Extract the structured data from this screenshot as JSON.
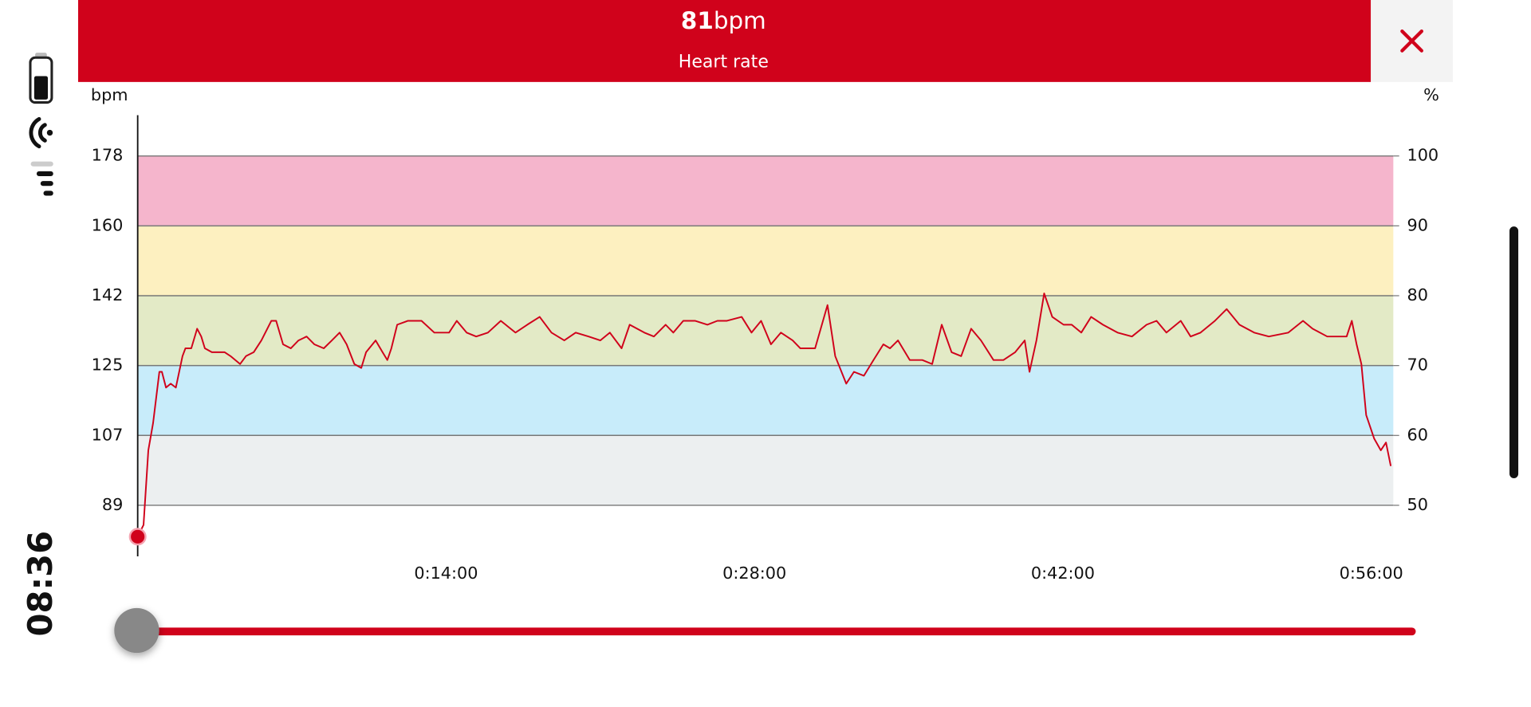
{
  "header": {
    "value": "81",
    "unit": "bpm",
    "label": "Heart rate"
  },
  "status": {
    "time": "08:36"
  },
  "chart_data": {
    "type": "line",
    "y_label": "bpm",
    "y2_label": "%",
    "xlim": [
      0,
      3420
    ],
    "xticks": [
      {
        "value": 840,
        "label": "0:14:00"
      },
      {
        "value": 1680,
        "label": "0:28:00"
      },
      {
        "value": 2520,
        "label": "0:42:00"
      },
      {
        "value": 3360,
        "label": "0:56:00"
      }
    ],
    "ylim": [
      76,
      188.4
    ],
    "yticks": [
      89,
      {
        "value": 106.8,
        "label": "107"
      },
      {
        "value": 124.6,
        "label": "125"
      },
      {
        "value": 142.4,
        "label": "142"
      },
      {
        "value": 160.2,
        "label": "160"
      },
      178
    ],
    "y2lim": [
      42.7,
      105.84
    ],
    "y2ticks": [
      50,
      60,
      70,
      80,
      90,
      100
    ],
    "grid": true,
    "zones": [
      {
        "from": 50,
        "to": 60,
        "color": "#eceff0"
      },
      {
        "from": 60,
        "to": 70,
        "color": "#c8ecfa"
      },
      {
        "from": 70,
        "to": 80,
        "color": "#e3eac6"
      },
      {
        "from": 80,
        "to": 90,
        "color": "#fdf0c0"
      },
      {
        "from": 90,
        "to": 100,
        "color": "#f5b5cc"
      }
    ],
    "x": [
      0,
      16,
      29,
      42,
      59,
      66,
      77,
      90,
      104,
      122,
      130,
      146,
      162,
      173,
      183,
      202,
      237,
      253,
      279,
      295,
      316,
      337,
      364,
      377,
      396,
      417,
      438,
      460,
      481,
      507,
      529,
      550,
      569,
      590,
      609,
      622,
      648,
      667,
      680,
      691,
      707,
      736,
      773,
      808,
      848,
      869,
      896,
      922,
      954,
      989,
      1029,
      1061,
      1095,
      1127,
      1162,
      1193,
      1228,
      1260,
      1286,
      1318,
      1340,
      1380,
      1406,
      1438,
      1459,
      1486,
      1518,
      1552,
      1579,
      1605,
      1645,
      1672,
      1698,
      1725,
      1752,
      1784,
      1805,
      1845,
      1879,
      1900,
      1930,
      1951,
      1978,
      2004,
      2031,
      2049,
      2071,
      2103,
      2137,
      2164,
      2190,
      2217,
      2243,
      2270,
      2297,
      2331,
      2358,
      2390,
      2416,
      2429,
      2448,
      2469,
      2491,
      2522,
      2544,
      2570,
      2597,
      2629,
      2669,
      2708,
      2748,
      2775,
      2802,
      2841,
      2868,
      2895,
      2934,
      2966,
      3001,
      3041,
      3081,
      3134,
      3174,
      3200,
      3240,
      3293,
      3307,
      3320,
      3333,
      3346,
      3368,
      3386,
      3400,
      3413
    ],
    "series": [
      {
        "name": "Heart rate",
        "color": "#d0021b",
        "values": [
          81,
          84,
          103,
          110,
          123,
          123,
          119,
          120,
          119,
          127,
          129,
          129,
          134,
          132,
          129,
          128,
          128,
          127,
          125,
          127,
          128,
          131,
          136,
          136,
          130,
          129,
          131,
          132,
          130,
          129,
          131,
          133,
          130,
          125,
          124,
          128,
          131,
          128,
          126,
          129,
          135,
          136,
          136,
          133,
          133,
          136,
          133,
          132,
          133,
          136,
          133,
          135,
          137,
          133,
          131,
          133,
          132,
          131,
          133,
          129,
          135,
          133,
          132,
          135,
          133,
          136,
          136,
          135,
          136,
          136,
          137,
          133,
          136,
          130,
          133,
          131,
          129,
          129,
          140,
          127,
          120,
          123,
          122,
          126,
          130,
          129,
          131,
          126,
          126,
          125,
          135,
          128,
          127,
          134,
          131,
          126,
          126,
          128,
          131,
          123,
          131,
          143,
          137,
          135,
          135,
          133,
          137,
          135,
          133,
          132,
          135,
          136,
          133,
          136,
          132,
          133,
          136,
          139,
          135,
          133,
          132,
          133,
          136,
          134,
          132,
          132,
          136,
          130,
          125,
          112,
          106,
          103,
          105,
          99
        ]
      }
    ]
  }
}
